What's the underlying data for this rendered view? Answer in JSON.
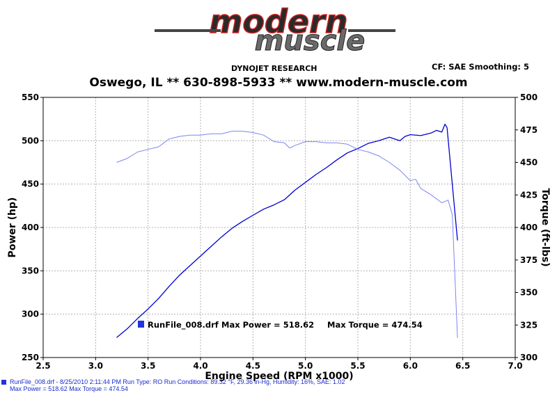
{
  "header": {
    "logo_text_1": "modern",
    "logo_text_2": "muscle",
    "company": "DYNOJET RESEARCH",
    "correction": "CF: SAE  Smoothing: 5",
    "subtitle": "Oswego, IL ** 630-898-5933 ** www.modern-muscle.com"
  },
  "footer": {
    "line1": "RunFile_008.drf - 8/25/2010 2:11:44 PM  Run Type: RO  Run Conditions: 89.32 °F, 29.36 in-Hg,  Humidity: 16%, SAE: 1.02",
    "line2": "Max Power = 518.62  Max Torque = 474.54"
  },
  "colors": {
    "power": "#0000cc",
    "torque": "#7a86ee",
    "grid": "#b0b0b0",
    "plot_bg": "#ffffff"
  },
  "chart_data": {
    "type": "line",
    "xlabel": "Engine Speed (RPM x1000)",
    "ylabel_left": "Power (hp)",
    "ylabel_right": "Torque (ft-lbs)",
    "xlim": [
      2.5,
      7.0
    ],
    "ylim_left": [
      250,
      550
    ],
    "ylim_right": [
      300,
      500
    ],
    "x_ticks": [
      "2.5",
      "3.0",
      "3.5",
      "4.0",
      "4.5",
      "5.0",
      "5.5",
      "6.0",
      "6.5",
      "7.0"
    ],
    "y_ticks_left": [
      "250",
      "300",
      "350",
      "400",
      "450",
      "500",
      "550"
    ],
    "y_ticks_right": [
      "300",
      "325",
      "350",
      "375",
      "400",
      "425",
      "450",
      "475",
      "500"
    ],
    "grid": true,
    "annotation": {
      "file": "RunFile_008.drf",
      "max_power_label": "Max Power = 518.62",
      "max_torque_label": "Max Torque = 474.54"
    },
    "series": [
      {
        "axis": "left",
        "x": [
          3.2,
          3.3,
          3.4,
          3.5,
          3.6,
          3.7,
          3.8,
          3.9,
          4.0,
          4.1,
          4.2,
          4.3,
          4.4,
          4.5,
          4.6,
          4.7,
          4.8,
          4.9,
          5.0,
          5.1,
          5.2,
          5.3,
          5.4,
          5.5,
          5.6,
          5.7,
          5.8,
          5.85,
          5.9,
          5.95,
          6.0,
          6.1,
          6.2,
          6.25,
          6.3,
          6.33,
          6.35,
          6.4,
          6.45
        ],
        "y": [
          273,
          283,
          295,
          306,
          318,
          332,
          345,
          356,
          367,
          378,
          389,
          399,
          407,
          414,
          421,
          426,
          432,
          443,
          452,
          461,
          469,
          478,
          486,
          491,
          497,
          500,
          504,
          502,
          500,
          505,
          507,
          506,
          509,
          512,
          510,
          519,
          515,
          450,
          385
        ]
      },
      {
        "axis": "right",
        "x": [
          3.2,
          3.3,
          3.4,
          3.5,
          3.6,
          3.7,
          3.8,
          3.9,
          4.0,
          4.1,
          4.2,
          4.3,
          4.4,
          4.5,
          4.6,
          4.7,
          4.8,
          4.85,
          4.9,
          5.0,
          5.1,
          5.2,
          5.3,
          5.4,
          5.5,
          5.6,
          5.7,
          5.8,
          5.9,
          6.0,
          6.05,
          6.1,
          6.2,
          6.3,
          6.33,
          6.36,
          6.4,
          6.45
        ],
        "y": [
          450,
          453,
          458,
          460,
          462,
          468,
          470,
          471,
          471,
          472,
          472,
          474,
          474,
          473,
          471,
          466,
          465,
          461,
          463,
          466,
          466,
          465,
          465,
          464,
          460,
          458,
          455,
          450,
          444,
          436,
          437,
          430,
          425,
          419,
          420,
          421,
          410,
          315
        ]
      }
    ]
  }
}
